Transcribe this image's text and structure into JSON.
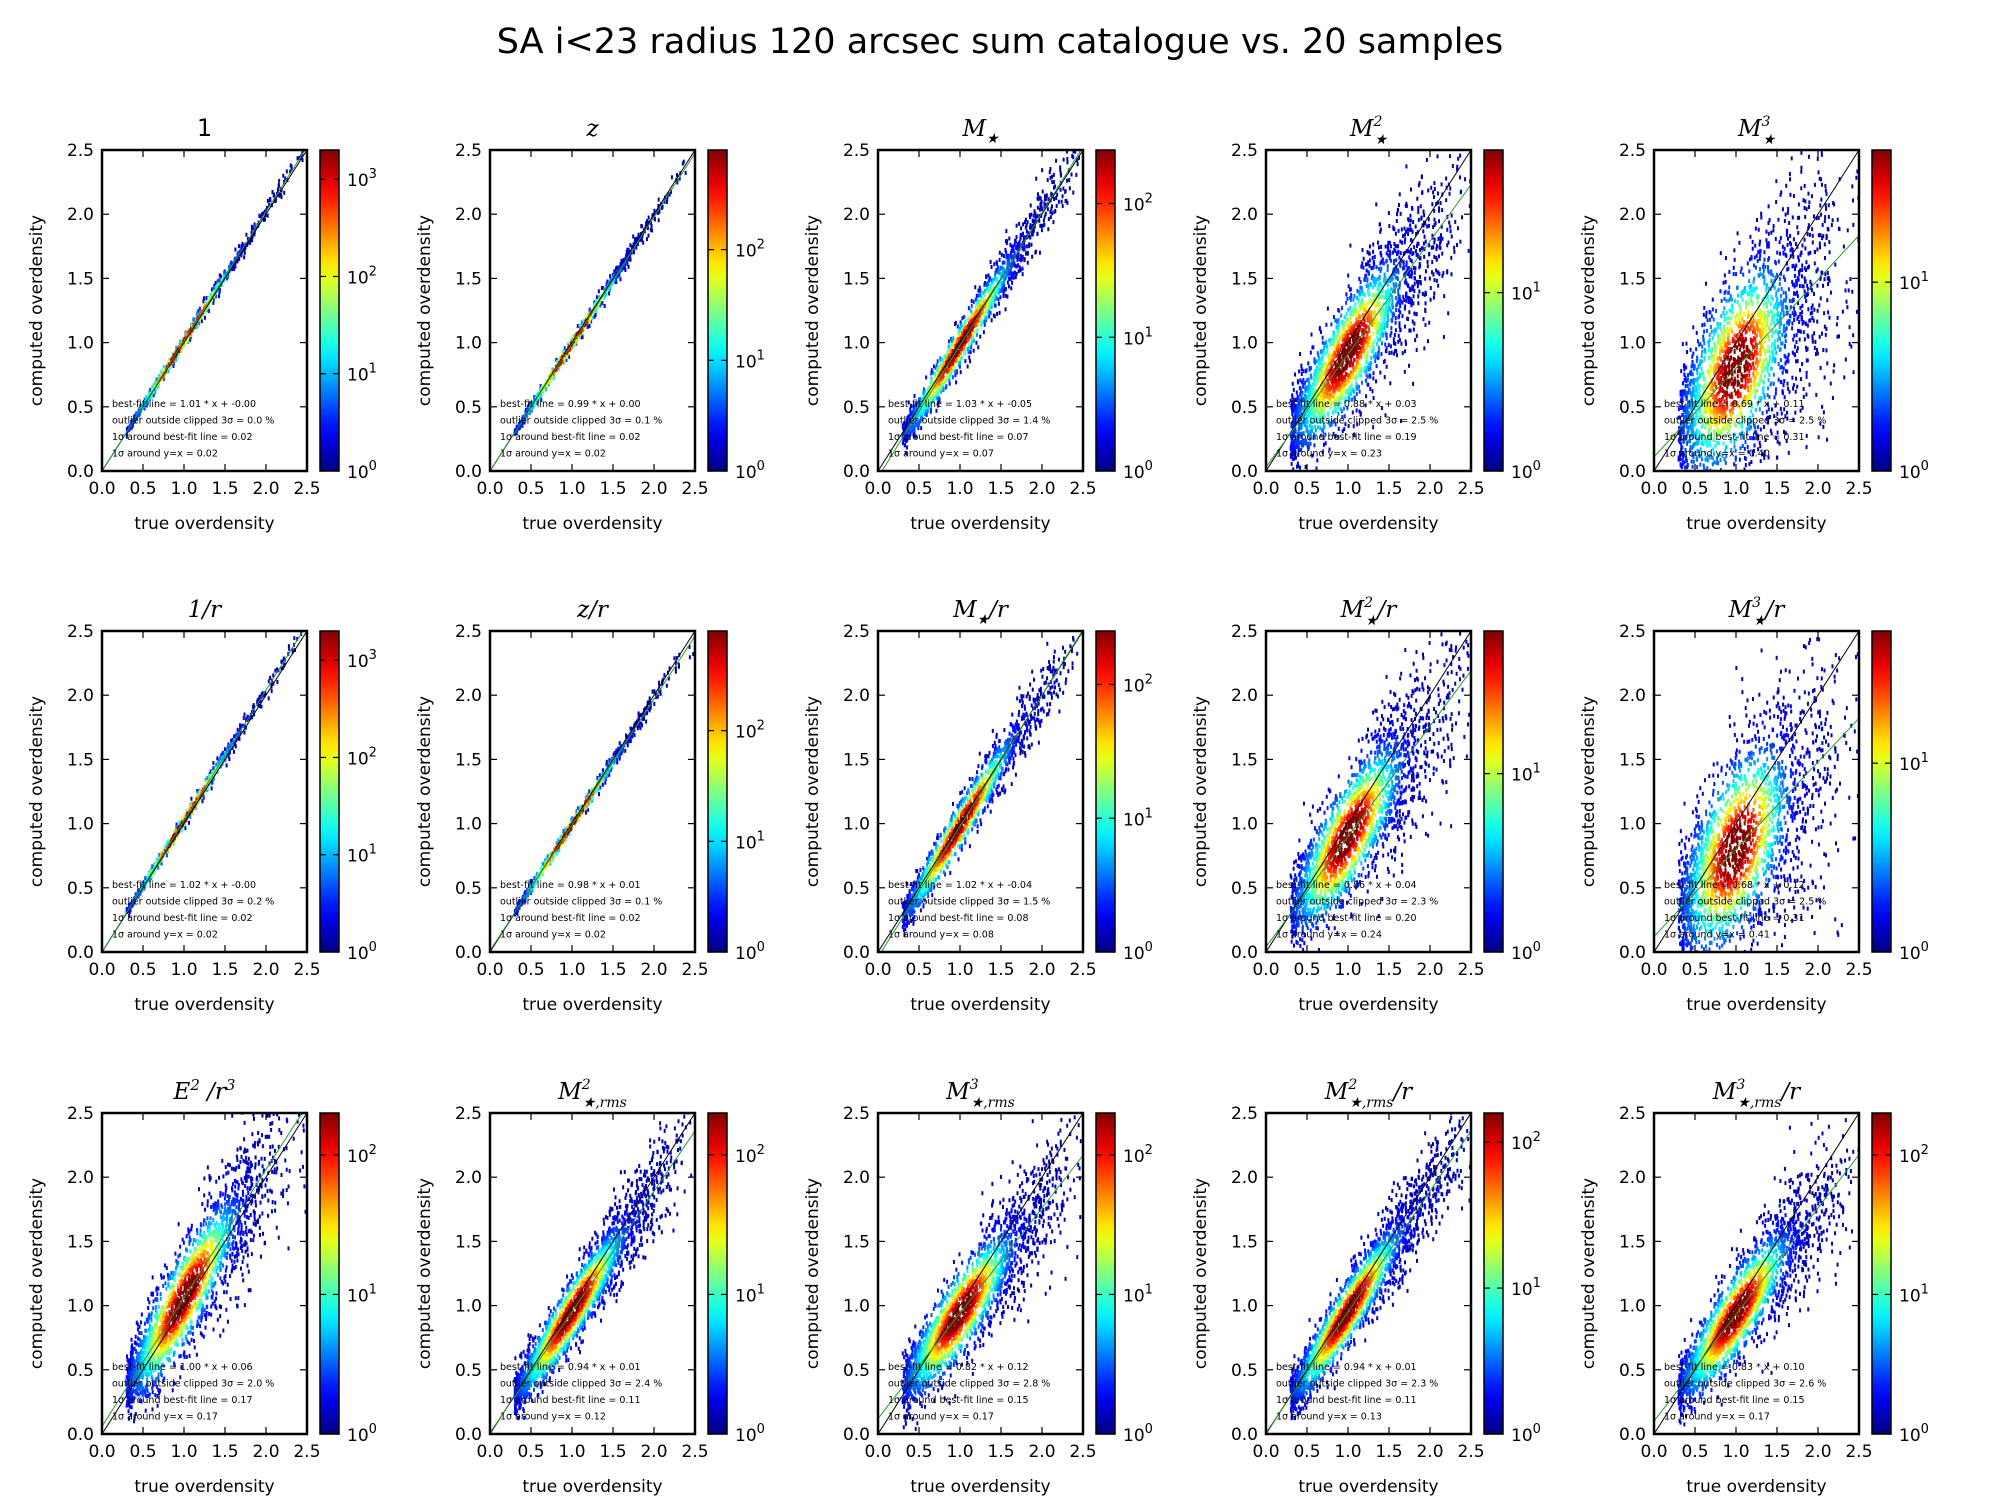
{
  "figure": {
    "suptitle": "SA i<23 radius 120 arcsec sum catalogue vs. 20 samples"
  },
  "colors": {
    "colormap": "jet",
    "identity_line": "#000000",
    "fit_line": "#2a9a2a",
    "axes": "#000000"
  },
  "chart_data": [
    {
      "type": "heatmap",
      "title": "1",
      "xlabel": "true overdensity",
      "ylabel": "computed overdensity",
      "xlim": [
        0,
        2.5
      ],
      "ylim": [
        0,
        2.5
      ],
      "xticks": [
        "0.0",
        "0.5",
        "1.0",
        "1.5",
        "2.0",
        "2.5"
      ],
      "yticks": [
        "0.0",
        "0.5",
        "1.0",
        "1.5",
        "2.0",
        "2.5"
      ],
      "colorbar": {
        "scale": "log",
        "min_exp": 0,
        "max_exp": 3.3,
        "tick_labels": [
          {
            "base": "10",
            "exp": "0"
          },
          {
            "base": "10",
            "exp": "1"
          },
          {
            "base": "10",
            "exp": "2"
          },
          {
            "base": "10",
            "exp": "3"
          }
        ]
      },
      "best_fit": {
        "slope": 1.01,
        "intercept": 0.0
      },
      "scatter": 0.02,
      "annotations": [
        "best-fit line = 1.01 * x + -0.00",
        "outlier outside clipped 3σ = 0.0 %",
        "1σ around best-fit line = 0.02",
        "1σ around y=x = 0.02"
      ]
    },
    {
      "type": "heatmap",
      "title": "z",
      "xlabel": "true overdensity",
      "ylabel": "computed overdensity",
      "xlim": [
        0,
        2.5
      ],
      "ylim": [
        0,
        2.5
      ],
      "xticks": [
        "0.0",
        "0.5",
        "1.0",
        "1.5",
        "2.0",
        "2.5"
      ],
      "yticks": [
        "0.0",
        "0.5",
        "1.0",
        "1.5",
        "2.0",
        "2.5"
      ],
      "colorbar": {
        "scale": "log",
        "min_exp": 0,
        "max_exp": 2.9,
        "tick_labels": [
          {
            "base": "10",
            "exp": "0"
          },
          {
            "base": "10",
            "exp": "1"
          },
          {
            "base": "10",
            "exp": "2"
          }
        ]
      },
      "best_fit": {
        "slope": 0.99,
        "intercept": 0.0
      },
      "scatter": 0.02,
      "annotations": [
        "best-fit line = 0.99 * x + 0.00",
        "outlier outside clipped 3σ = 0.1 %",
        "1σ around best-fit line = 0.02",
        "1σ around y=x = 0.02"
      ]
    },
    {
      "type": "heatmap",
      "title": "M★",
      "xlabel": "true overdensity",
      "ylabel": "computed overdensity",
      "xlim": [
        0,
        2.5
      ],
      "ylim": [
        0,
        2.5
      ],
      "xticks": [
        "0.0",
        "0.5",
        "1.0",
        "1.5",
        "2.0",
        "2.5"
      ],
      "yticks": [
        "0.0",
        "0.5",
        "1.0",
        "1.5",
        "2.0",
        "2.5"
      ],
      "colorbar": {
        "scale": "log",
        "min_exp": 0,
        "max_exp": 2.4,
        "tick_labels": [
          {
            "base": "10",
            "exp": "0"
          },
          {
            "base": "10",
            "exp": "1"
          },
          {
            "base": "10",
            "exp": "2"
          }
        ]
      },
      "best_fit": {
        "slope": 1.03,
        "intercept": -0.05
      },
      "scatter": 0.07,
      "annotations": [
        "best-fit line = 1.03 * x + -0.05",
        "outlier outside clipped 3σ = 1.4 %",
        "1σ around best-fit line = 0.07",
        "1σ around y=x = 0.07"
      ]
    },
    {
      "type": "heatmap",
      "title": "M★²",
      "xlabel": "true overdensity",
      "ylabel": "computed overdensity",
      "xlim": [
        0,
        2.5
      ],
      "ylim": [
        0,
        2.5
      ],
      "xticks": [
        "0.0",
        "0.5",
        "1.0",
        "1.5",
        "2.0",
        "2.5"
      ],
      "yticks": [
        "0.0",
        "0.5",
        "1.0",
        "1.5",
        "2.0",
        "2.5"
      ],
      "colorbar": {
        "scale": "log",
        "min_exp": 0,
        "max_exp": 1.8,
        "tick_labels": [
          {
            "base": "10",
            "exp": "0"
          },
          {
            "base": "10",
            "exp": "1"
          }
        ]
      },
      "best_fit": {
        "slope": 0.88,
        "intercept": 0.03
      },
      "scatter": 0.19,
      "annotations": [
        "best-fit line = 0.88 * x + 0.03",
        "outlier outside clipped 3σ = 2.5 %",
        "1σ around best-fit line = 0.19",
        "1σ around y=x = 0.23"
      ]
    },
    {
      "type": "heatmap",
      "title": "M★³",
      "xlabel": "true overdensity",
      "ylabel": "computed overdensity",
      "xlim": [
        0,
        2.5
      ],
      "ylim": [
        0,
        2.5
      ],
      "xticks": [
        "0.0",
        "0.5",
        "1.0",
        "1.5",
        "2.0",
        "2.5"
      ],
      "yticks": [
        "0.0",
        "0.5",
        "1.0",
        "1.5",
        "2.0",
        "2.5"
      ],
      "colorbar": {
        "scale": "log",
        "min_exp": 0,
        "max_exp": 1.7,
        "tick_labels": [
          {
            "base": "10",
            "exp": "0"
          },
          {
            "base": "10",
            "exp": "1"
          }
        ]
      },
      "best_fit": {
        "slope": 0.69,
        "intercept": 0.11
      },
      "scatter": 0.31,
      "annotations": [
        "best-fit line = 0.69 * x + 0.11",
        "outlier outside clipped 3σ = 2.5 %",
        "1σ around best-fit line = 0.31",
        "1σ around y=x = 0.40"
      ]
    },
    {
      "type": "heatmap",
      "title": "1/r",
      "xlabel": "true overdensity",
      "ylabel": "computed overdensity",
      "xlim": [
        0,
        2.5
      ],
      "ylim": [
        0,
        2.5
      ],
      "xticks": [
        "0.0",
        "0.5",
        "1.0",
        "1.5",
        "2.0",
        "2.5"
      ],
      "yticks": [
        "0.0",
        "0.5",
        "1.0",
        "1.5",
        "2.0",
        "2.5"
      ],
      "colorbar": {
        "scale": "log",
        "min_exp": 0,
        "max_exp": 3.3,
        "tick_labels": [
          {
            "base": "10",
            "exp": "0"
          },
          {
            "base": "10",
            "exp": "1"
          },
          {
            "base": "10",
            "exp": "2"
          },
          {
            "base": "10",
            "exp": "3"
          }
        ]
      },
      "best_fit": {
        "slope": 1.02,
        "intercept": 0.0
      },
      "scatter": 0.02,
      "annotations": [
        "best-fit line = 1.02 * x + -0.00",
        "outlier outside clipped 3σ = 0.2 %",
        "1σ around best-fit line = 0.02",
        "1σ around y=x = 0.02"
      ]
    },
    {
      "type": "heatmap",
      "title": "z/r",
      "xlabel": "true overdensity",
      "ylabel": "computed overdensity",
      "xlim": [
        0,
        2.5
      ],
      "ylim": [
        0,
        2.5
      ],
      "xticks": [
        "0.0",
        "0.5",
        "1.0",
        "1.5",
        "2.0",
        "2.5"
      ],
      "yticks": [
        "0.0",
        "0.5",
        "1.0",
        "1.5",
        "2.0",
        "2.5"
      ],
      "colorbar": {
        "scale": "log",
        "min_exp": 0,
        "max_exp": 2.9,
        "tick_labels": [
          {
            "base": "10",
            "exp": "0"
          },
          {
            "base": "10",
            "exp": "1"
          },
          {
            "base": "10",
            "exp": "2"
          }
        ]
      },
      "best_fit": {
        "slope": 0.98,
        "intercept": 0.01
      },
      "scatter": 0.02,
      "annotations": [
        "best-fit line = 0.98 * x + 0.01",
        "outlier outside clipped 3σ = 0.1 %",
        "1σ around best-fit line = 0.02",
        "1σ around y=x = 0.02"
      ]
    },
    {
      "type": "heatmap",
      "title": "M★/r",
      "xlabel": "true overdensity",
      "ylabel": "computed overdensity",
      "xlim": [
        0,
        2.5
      ],
      "ylim": [
        0,
        2.5
      ],
      "xticks": [
        "0.0",
        "0.5",
        "1.0",
        "1.5",
        "2.0",
        "2.5"
      ],
      "yticks": [
        "0.0",
        "0.5",
        "1.0",
        "1.5",
        "2.0",
        "2.5"
      ],
      "colorbar": {
        "scale": "log",
        "min_exp": 0,
        "max_exp": 2.4,
        "tick_labels": [
          {
            "base": "10",
            "exp": "0"
          },
          {
            "base": "10",
            "exp": "1"
          },
          {
            "base": "10",
            "exp": "2"
          }
        ]
      },
      "best_fit": {
        "slope": 1.02,
        "intercept": -0.04
      },
      "scatter": 0.08,
      "annotations": [
        "best-fit line = 1.02 * x + -0.04",
        "outlier outside clipped 3σ = 1.5 %",
        "1σ around best-fit line = 0.08",
        "1σ around y=x = 0.08"
      ]
    },
    {
      "type": "heatmap",
      "title": "M★²/r",
      "xlabel": "true overdensity",
      "ylabel": "computed overdensity",
      "xlim": [
        0,
        2.5
      ],
      "ylim": [
        0,
        2.5
      ],
      "xticks": [
        "0.0",
        "0.5",
        "1.0",
        "1.5",
        "2.0",
        "2.5"
      ],
      "yticks": [
        "0.0",
        "0.5",
        "1.0",
        "1.5",
        "2.0",
        "2.5"
      ],
      "colorbar": {
        "scale": "log",
        "min_exp": 0,
        "max_exp": 1.8,
        "tick_labels": [
          {
            "base": "10",
            "exp": "0"
          },
          {
            "base": "10",
            "exp": "1"
          }
        ]
      },
      "best_fit": {
        "slope": 0.86,
        "intercept": 0.04
      },
      "scatter": 0.2,
      "annotations": [
        "best-fit line = 0.86 * x + 0.04",
        "outlier outside clipped 3σ = 2.3 %",
        "1σ around best-fit line = 0.20",
        "1σ around y=x = 0.24"
      ]
    },
    {
      "type": "heatmap",
      "title": "M★³/r",
      "xlabel": "true overdensity",
      "ylabel": "computed overdensity",
      "xlim": [
        0,
        2.5
      ],
      "ylim": [
        0,
        2.5
      ],
      "xticks": [
        "0.0",
        "0.5",
        "1.0",
        "1.5",
        "2.0",
        "2.5"
      ],
      "yticks": [
        "0.0",
        "0.5",
        "1.0",
        "1.5",
        "2.0",
        "2.5"
      ],
      "colorbar": {
        "scale": "log",
        "min_exp": 0,
        "max_exp": 1.7,
        "tick_labels": [
          {
            "base": "10",
            "exp": "0"
          },
          {
            "base": "10",
            "exp": "1"
          }
        ]
      },
      "best_fit": {
        "slope": 0.68,
        "intercept": 0.12
      },
      "scatter": 0.31,
      "annotations": [
        "best-fit line = 0.68 * x + 0.12",
        "outlier outside clipped 3σ = 2.5 %",
        "1σ around best-fit line = 0.31",
        "1σ around y=x = 0.41"
      ]
    },
    {
      "type": "heatmap",
      "title": "E² /r³",
      "xlabel": "true overdensity",
      "ylabel": "computed overdensity",
      "xlim": [
        0,
        2.5
      ],
      "ylim": [
        0,
        2.5
      ],
      "xticks": [
        "0.0",
        "0.5",
        "1.0",
        "1.5",
        "2.0",
        "2.5"
      ],
      "yticks": [
        "0.0",
        "0.5",
        "1.0",
        "1.5",
        "2.0",
        "2.5"
      ],
      "colorbar": {
        "scale": "log",
        "min_exp": 0,
        "max_exp": 2.3,
        "tick_labels": [
          {
            "base": "10",
            "exp": "0"
          },
          {
            "base": "10",
            "exp": "1"
          },
          {
            "base": "10",
            "exp": "2"
          }
        ]
      },
      "best_fit": {
        "slope": 1.0,
        "intercept": 0.06
      },
      "scatter": 0.17,
      "annotations": [
        "best-fit line = 1.00 * x + 0.06",
        "outlier outside clipped 3σ = 2.0 %",
        "1σ around best-fit line = 0.17",
        "1σ around y=x = 0.17"
      ]
    },
    {
      "type": "heatmap",
      "title": "M★,rms²",
      "xlabel": "true overdensity",
      "ylabel": "computed overdensity",
      "xlim": [
        0,
        2.5
      ],
      "ylim": [
        0,
        2.5
      ],
      "xticks": [
        "0.0",
        "0.5",
        "1.0",
        "1.5",
        "2.0",
        "2.5"
      ],
      "yticks": [
        "0.0",
        "0.5",
        "1.0",
        "1.5",
        "2.0",
        "2.5"
      ],
      "colorbar": {
        "scale": "log",
        "min_exp": 0,
        "max_exp": 2.3,
        "tick_labels": [
          {
            "base": "10",
            "exp": "0"
          },
          {
            "base": "10",
            "exp": "1"
          },
          {
            "base": "10",
            "exp": "2"
          }
        ]
      },
      "best_fit": {
        "slope": 0.94,
        "intercept": 0.01
      },
      "scatter": 0.11,
      "annotations": [
        "best-fit line = 0.94 * x + 0.01",
        "outlier outside clipped 3σ = 2.4 %",
        "1σ around best-fit line = 0.11",
        "1σ around y=x = 0.12"
      ]
    },
    {
      "type": "heatmap",
      "title": "M★,rms³",
      "xlabel": "true overdensity",
      "ylabel": "computed overdensity",
      "xlim": [
        0,
        2.5
      ],
      "ylim": [
        0,
        2.5
      ],
      "xticks": [
        "0.0",
        "0.5",
        "1.0",
        "1.5",
        "2.0",
        "2.5"
      ],
      "yticks": [
        "0.0",
        "0.5",
        "1.0",
        "1.5",
        "2.0",
        "2.5"
      ],
      "colorbar": {
        "scale": "log",
        "min_exp": 0,
        "max_exp": 2.3,
        "tick_labels": [
          {
            "base": "10",
            "exp": "0"
          },
          {
            "base": "10",
            "exp": "1"
          },
          {
            "base": "10",
            "exp": "2"
          }
        ]
      },
      "best_fit": {
        "slope": 0.82,
        "intercept": 0.12
      },
      "scatter": 0.15,
      "annotations": [
        "best-fit line = 0.82 * x + 0.12",
        "outlier outside clipped 3σ = 2.8 %",
        "1σ around best-fit line = 0.15",
        "1σ around y=x = 0.17"
      ]
    },
    {
      "type": "heatmap",
      "title": "M★,rms²/r",
      "xlabel": "true overdensity",
      "ylabel": "computed overdensity",
      "xlim": [
        0,
        2.5
      ],
      "ylim": [
        0,
        2.5
      ],
      "xticks": [
        "0.0",
        "0.5",
        "1.0",
        "1.5",
        "2.0",
        "2.5"
      ],
      "yticks": [
        "0.0",
        "0.5",
        "1.0",
        "1.5",
        "2.0",
        "2.5"
      ],
      "colorbar": {
        "scale": "log",
        "min_exp": 0,
        "max_exp": 2.2,
        "tick_labels": [
          {
            "base": "10",
            "exp": "0"
          },
          {
            "base": "10",
            "exp": "1"
          },
          {
            "base": "10",
            "exp": "2"
          }
        ]
      },
      "best_fit": {
        "slope": 0.94,
        "intercept": 0.01
      },
      "scatter": 0.11,
      "annotations": [
        "best-fit line = 0.94 * x + 0.01",
        "outlier outside clipped 3σ = 2.3 %",
        "1σ around best-fit line = 0.11",
        "1σ around y=x = 0.13"
      ]
    },
    {
      "type": "heatmap",
      "title": "M★,rms³/r",
      "xlabel": "true overdensity",
      "ylabel": "computed overdensity",
      "xlim": [
        0,
        2.5
      ],
      "ylim": [
        0,
        2.5
      ],
      "xticks": [
        "0.0",
        "0.5",
        "1.0",
        "1.5",
        "2.0",
        "2.5"
      ],
      "yticks": [
        "0.0",
        "0.5",
        "1.0",
        "1.5",
        "2.0",
        "2.5"
      ],
      "colorbar": {
        "scale": "log",
        "min_exp": 0,
        "max_exp": 2.3,
        "tick_labels": [
          {
            "base": "10",
            "exp": "0"
          },
          {
            "base": "10",
            "exp": "1"
          },
          {
            "base": "10",
            "exp": "2"
          }
        ]
      },
      "best_fit": {
        "slope": 0.83,
        "intercept": 0.1
      },
      "scatter": 0.15,
      "annotations": [
        "best-fit line = 0.83 * x + 0.10",
        "outlier outside clipped 3σ = 2.6 %",
        "1σ around best-fit line = 0.15",
        "1σ around y=x = 0.17"
      ]
    }
  ]
}
